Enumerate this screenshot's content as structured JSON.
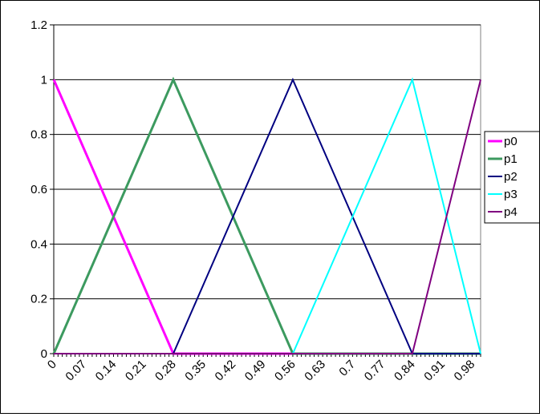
{
  "chart_data": {
    "type": "line",
    "title": "",
    "xlabel": "",
    "ylabel": "",
    "ylim": [
      0,
      1.2
    ],
    "y_ticks": [
      "0",
      "0.2",
      "0.4",
      "0.6",
      "0.8",
      "1",
      "1.2"
    ],
    "x_tick_labels": [
      "0",
      "0.07",
      "0.14",
      "0.21",
      "0.28",
      "0.35",
      "0.42",
      "0.49",
      "0.56",
      "0.63",
      "0.7",
      "0.77",
      "0.84",
      "0.91",
      "0.98"
    ],
    "x_range": [
      0,
      1
    ],
    "grid": "horizontal",
    "legend_position": "right",
    "series": [
      {
        "name": "p0",
        "color": "#ff00ff",
        "x": [
          0,
          0.28,
          1
        ],
        "y": [
          1,
          0,
          0
        ]
      },
      {
        "name": "p1",
        "color": "#3c9a5f",
        "x": [
          0,
          0.28,
          0.56,
          1
        ],
        "y": [
          0,
          1,
          0,
          0
        ]
      },
      {
        "name": "p2",
        "color": "#000080",
        "x": [
          0,
          0.28,
          0.56,
          0.84,
          1
        ],
        "y": [
          0,
          0,
          1,
          0,
          0
        ]
      },
      {
        "name": "p3",
        "color": "#00ffff",
        "x": [
          0,
          0.56,
          0.84,
          1
        ],
        "y": [
          0,
          0,
          1,
          0
        ]
      },
      {
        "name": "p4",
        "color": "#800080",
        "x": [
          0,
          0.84,
          1
        ],
        "y": [
          0,
          0,
          1
        ]
      }
    ]
  }
}
